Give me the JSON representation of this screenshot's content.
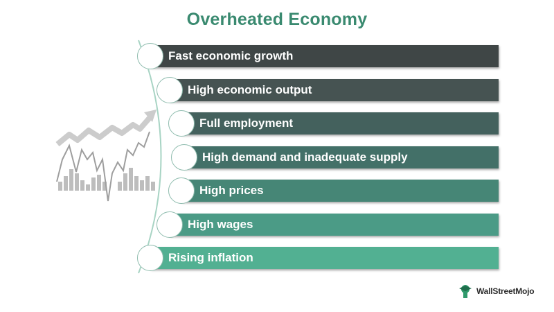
{
  "title": "Overheated Economy",
  "steps": [
    {
      "label": "Fast economic growth",
      "color": "#3f4646"
    },
    {
      "label": "High economic output",
      "color": "#465352"
    },
    {
      "label": "Full employment",
      "color": "#44615d"
    },
    {
      "label": "High demand and inadequate supply",
      "color": "#437068"
    },
    {
      "label": "High prices",
      "color": "#468676"
    },
    {
      "label": "High wages",
      "color": "#4b9b86"
    },
    {
      "label": "Rising inflation",
      "color": "#52b092"
    }
  ],
  "colors": {
    "title": "#3a8a70",
    "spine": "#a8d4c4",
    "icon": "#bdbdbd"
  },
  "icons": {
    "chart": "trend-chart-icon",
    "brand": "wallstreetmojo-logo-icon"
  },
  "brand": {
    "name": "WallStreetMojo"
  }
}
